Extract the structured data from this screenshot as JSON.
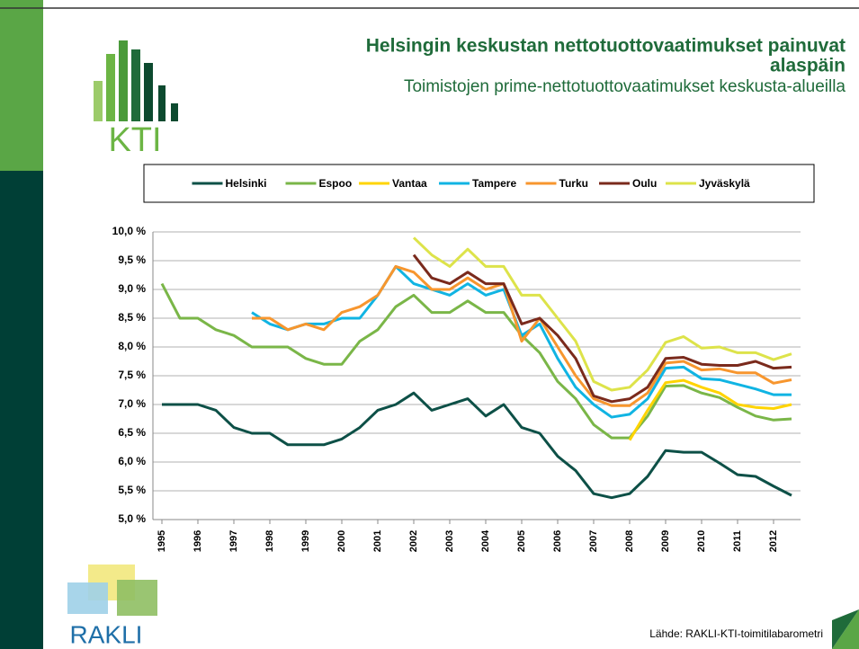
{
  "slide": {
    "title": "Helsingin keskustan nettotuottovaatimukset painuvat alaspäin",
    "subtitle": "Toimistojen prime-nettotuottovaatimukset keskusta-alueilla",
    "source": "Lähde: RAKLI-KTI-toimitilabarometri",
    "logo_top": "KTI",
    "logo_bottom": "RAKLI"
  },
  "chart_data": {
    "type": "line",
    "x": [
      1995,
      1995.5,
      1996,
      1996.5,
      1997,
      1997.5,
      1998,
      1998.5,
      1999,
      1999.5,
      2000,
      2000.5,
      2001,
      2001.5,
      2002,
      2002.5,
      2003,
      2003.5,
      2004,
      2004.5,
      2005,
      2005.5,
      2006,
      2006.5,
      2007,
      2007.5,
      2008,
      2008.5,
      2009,
      2009.5,
      2010,
      2010.5,
      2011,
      2011.5,
      2012,
      2012.5
    ],
    "xlim": [
      1994.75,
      2012.75
    ],
    "xticks": [
      1995,
      1996,
      1997,
      1998,
      1999,
      2000,
      2001,
      2002,
      2003,
      2004,
      2005,
      2006,
      2007,
      2008,
      2009,
      2010,
      2011,
      2012
    ],
    "ylim": [
      5,
      10
    ],
    "yticks": [
      {
        "value": 5,
        "label": "5,0 %"
      },
      {
        "value": 5.5,
        "label": "5,5 %"
      },
      {
        "value": 6,
        "label": "6,0 %"
      },
      {
        "value": 6.5,
        "label": "6,5 %"
      },
      {
        "value": 7,
        "label": "7,0 %"
      },
      {
        "value": 7.5,
        "label": "7,5 %"
      },
      {
        "value": 8,
        "label": "8,0 %"
      },
      {
        "value": 8.5,
        "label": "8,5 %"
      },
      {
        "value": 9,
        "label": "9,0 %"
      },
      {
        "value": 9.5,
        "label": "9,5 %"
      },
      {
        "value": 10,
        "label": "10,0 %"
      }
    ],
    "grid": true,
    "legend": "top",
    "series": [
      {
        "name": "Helsinki",
        "color": "#0d5047",
        "values": [
          7.0,
          7.0,
          7.0,
          6.9,
          6.6,
          6.5,
          6.5,
          6.3,
          6.3,
          6.3,
          6.4,
          6.6,
          6.9,
          7.0,
          7.2,
          6.9,
          7.0,
          7.1,
          6.8,
          7.0,
          6.6,
          6.5,
          6.1,
          5.85,
          5.45,
          5.38,
          5.45,
          5.75,
          6.2,
          6.17,
          6.17,
          5.98,
          5.78,
          5.75,
          5.58,
          5.42
        ]
      },
      {
        "name": "Espoo",
        "color": "#7ab648",
        "values": [
          9.1,
          8.5,
          8.5,
          8.3,
          8.2,
          8.0,
          8.0,
          8.0,
          7.8,
          7.7,
          7.7,
          8.1,
          8.3,
          8.7,
          8.9,
          8.6,
          8.6,
          8.8,
          8.6,
          8.6,
          8.2,
          7.9,
          7.4,
          7.1,
          6.65,
          6.42,
          6.42,
          6.8,
          7.32,
          7.33,
          7.2,
          7.12,
          6.95,
          6.8,
          6.73,
          6.75
        ]
      },
      {
        "name": "Vantaa",
        "color": "#ffd400",
        "values": [
          null,
          null,
          null,
          null,
          null,
          null,
          null,
          null,
          null,
          null,
          null,
          null,
          null,
          null,
          null,
          null,
          null,
          null,
          null,
          null,
          null,
          null,
          null,
          null,
          null,
          null,
          6.38,
          6.9,
          7.38,
          7.42,
          7.3,
          7.2,
          7.0,
          6.95,
          6.93,
          7.0
        ]
      },
      {
        "name": "Tampere",
        "color": "#10b4e3",
        "values": [
          null,
          null,
          null,
          null,
          null,
          8.6,
          8.4,
          8.3,
          8.4,
          8.4,
          8.5,
          8.5,
          8.9,
          9.4,
          9.1,
          9.0,
          8.9,
          9.1,
          8.9,
          9.0,
          8.2,
          8.4,
          7.8,
          7.3,
          7.0,
          6.78,
          6.83,
          7.1,
          7.63,
          7.65,
          7.45,
          7.43,
          7.35,
          7.27,
          7.17,
          7.17
        ]
      },
      {
        "name": "Turku",
        "color": "#f7962e",
        "values": [
          null,
          null,
          null,
          null,
          null,
          8.5,
          8.5,
          8.3,
          8.4,
          8.3,
          8.6,
          8.7,
          8.9,
          9.4,
          9.3,
          9.0,
          9.0,
          9.2,
          9.0,
          9.1,
          8.1,
          8.5,
          8.0,
          7.5,
          7.1,
          6.98,
          6.98,
          7.2,
          7.72,
          7.75,
          7.6,
          7.62,
          7.55,
          7.55,
          7.37,
          7.43
        ]
      },
      {
        "name": "Oulu",
        "color": "#7a2a1c",
        "values": [
          null,
          null,
          null,
          null,
          null,
          null,
          null,
          null,
          null,
          null,
          null,
          null,
          null,
          null,
          9.6,
          9.2,
          9.1,
          9.3,
          9.1,
          9.1,
          8.4,
          8.5,
          8.2,
          7.8,
          7.15,
          7.05,
          7.1,
          7.3,
          7.8,
          7.82,
          7.7,
          7.68,
          7.68,
          7.75,
          7.63,
          7.65
        ]
      },
      {
        "name": "Jyväskylä",
        "color": "#dde34a",
        "values": [
          null,
          null,
          null,
          null,
          null,
          null,
          null,
          null,
          null,
          null,
          null,
          null,
          null,
          null,
          9.9,
          9.6,
          9.4,
          9.7,
          9.4,
          9.4,
          8.9,
          8.9,
          8.5,
          8.1,
          7.4,
          7.25,
          7.3,
          7.6,
          8.08,
          8.18,
          7.98,
          8.0,
          7.9,
          7.9,
          7.78,
          7.88
        ]
      }
    ]
  }
}
